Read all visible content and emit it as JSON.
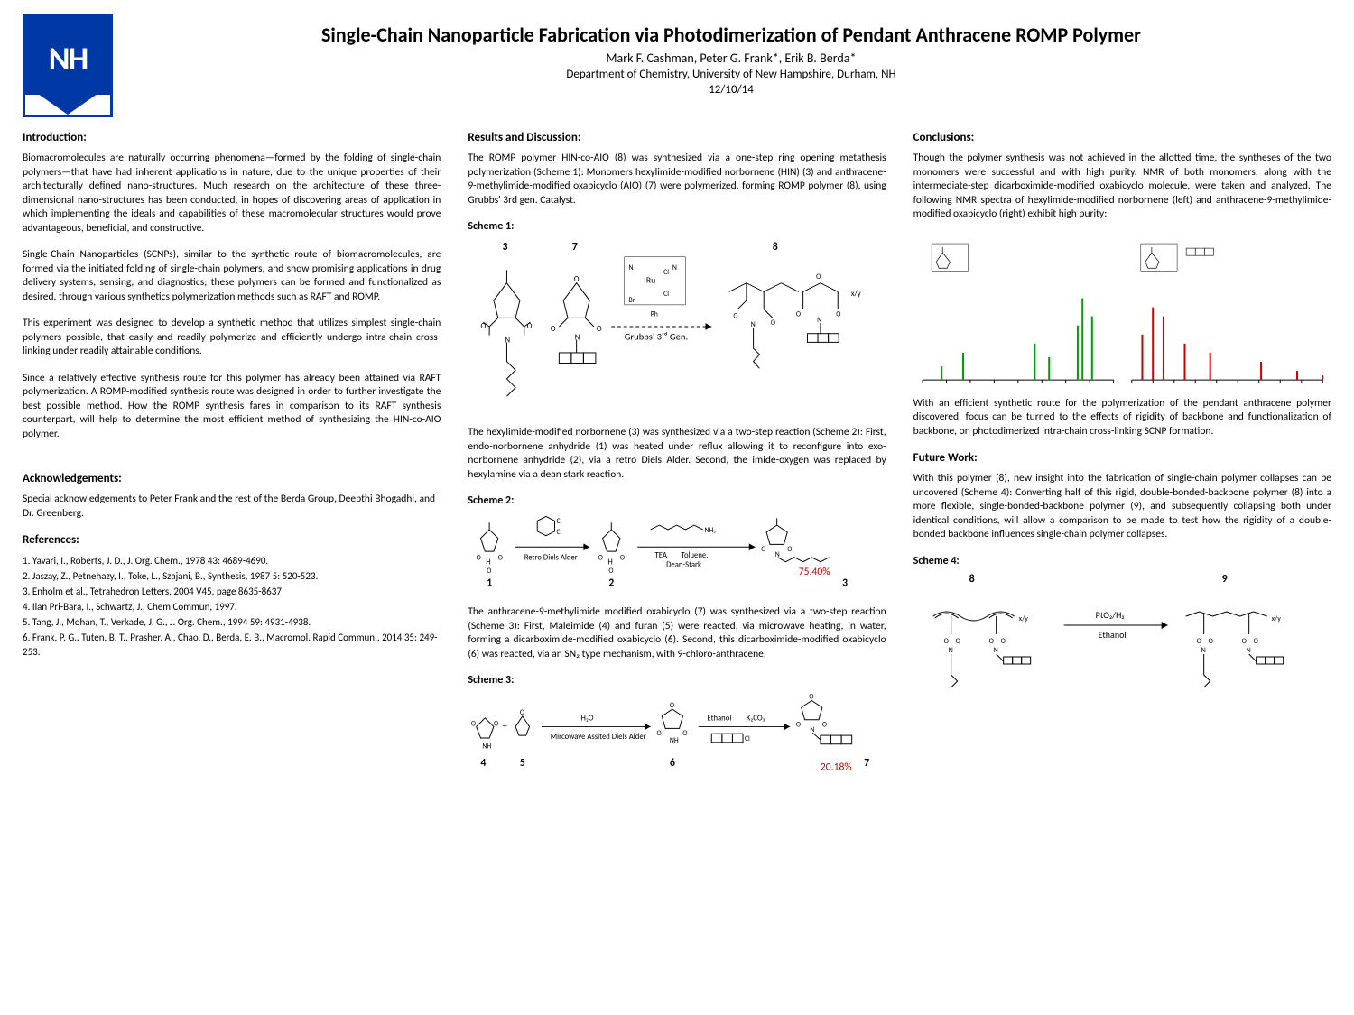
{
  "header": {
    "logo_text": "NH",
    "title": "Single-Chain Nanoparticle Fabrication via Photodimerization of Pendant Anthracene ROMP Polymer",
    "authors": "Mark F. Cashman, Peter G. Frank*, Erik B. Berda*",
    "department": "Department of Chemistry, University of New Hampshire, Durham, NH",
    "date": "12/10/14"
  },
  "intro": {
    "heading": "Introduction:",
    "p1": "Biomacromolecules are naturally occurring phenomena—formed by the folding of single-chain polymers—that have had inherent applications in nature, due to the unique properties of their architecturally defined nano-structures. Much research on the architecture of these three-dimensional nano-structures has been conducted, in hopes of discovering areas of application in which implementing the ideals and capabilities of these macromolecular structures would prove advantageous, beneficial, and constructive.",
    "p2": "Single-Chain Nanoparticles (SCNPs), similar to the synthetic route of biomacromolecules, are formed via the initiated folding of single-chain polymers, and show promising applications in drug delivery systems, sensing, and diagnostics; these polymers can be formed and functionalized as desired, through various synthetics polymerization methods such as RAFT and ROMP.",
    "p3": "This experiment was designed to develop a synthetic method that utilizes simplest single-chain polymers possible, that easily and readily polymerize and efficiently undergo intra-chain cross-linking under readily attainable conditions.",
    "p4": "Since a relatively effective synthesis route for this polymer has already been attained via RAFT polymerization. A ROMP-modified synthesis route was designed in order to further investigate the best possible method. How the ROMP synthesis fares in comparison to its RAFT synthesis counterpart, will help to determine the most efficient method of synthesizing the HIN-co-AIO polymer."
  },
  "ack": {
    "heading": "Acknowledgements:",
    "text": "Special acknowledgements to Peter Frank and the rest of the Berda Group, Deepthi Bhogadhi, and Dr. Greenberg."
  },
  "refs": {
    "heading": "References:",
    "items": [
      "1. Yavari, I., Roberts, J. D., J. Org. Chem., 1978 43: 4689-4690.",
      "2. Jaszay, Z., Petnehazy, I., Toke, L., Szajani, B., Synthesis, 1987 5: 520-523.",
      "3. Enholm et al., Tetrahedron Letters, 2004 V45, page 8635-8637",
      "4. Ilan Pri-Bara, I., Schwartz, J., Chem Commun, 1997.",
      "5. Tang, J., Mohan, T., Verkade, J. G., J. Org. Chem., 1994 59: 4931-4938.",
      "6. Frank, P. G., Tuten, B. T., Prasher, A., Chao, D., Berda, E. B., Macromol. Rapid Commun., 2014 35: 249-253."
    ]
  },
  "results": {
    "heading": "Results and Discussion:",
    "p1": "The ROMP polymer HIN-co-AIO (8) was synthesized via a one-step ring opening metathesis polymerization (Scheme 1): Monomers hexylimide-modified norbornene (HIN) (3) and anthracene-9-methylimide-modified oxabicyclo (AIO) (7) were polymerized, forming ROMP polymer (8), using Grubbs' 3rd gen. Catalyst.",
    "scheme1_label": "Scheme 1:",
    "scheme1_nums": [
      "3",
      "7",
      "8"
    ],
    "scheme1_catalyst": "Grubbs' 3rd Gen.",
    "p2": "The hexylimide-modified norbornene (3) was synthesized via a two-step reaction (Scheme 2): First, endo-norbornene anhydride (1) was heated under reflux allowing it to reconfigure into exo-norbornene anhydride (2), via a retro Diels Alder. Second, the imide-oxygen was replaced by hexylamine via a dean stark reaction.",
    "scheme2_label": "Scheme 2:",
    "scheme2_nums": [
      "1",
      "2",
      "3"
    ],
    "scheme2_yields": "75.40%",
    "scheme2_reag1": "Retro Diels Alder",
    "scheme2_reag2a": "TEA",
    "scheme2_reag2b": "Toluene,",
    "scheme2_reag2c": "Dean-Stark",
    "p3": "The anthracene-9-methylimide modified oxabicyclo (7) was synthesized via a two-step reaction (Scheme 3): First, Maleimide (4) and furan (5) were reacted, via microwave heating, in water, forming a dicarboximide-modified oxabicyclo (6). Second, this dicarboximide-modified oxabicyclo (6) was reacted, via an SN₂ type mechanism, with 9-chloro-anthracene.",
    "scheme3_label": "Scheme 3:",
    "scheme3_nums": [
      "4",
      "5",
      "6",
      "7"
    ],
    "scheme3_yields": "20.18%",
    "scheme3_reag1a": "H₂O",
    "scheme3_reag1b": "Mircowave Assited Diels Alder",
    "scheme3_reag2a": "Ethanol",
    "scheme3_reag2b": "K₂CO₃"
  },
  "conclusions": {
    "heading": "Conclusions:",
    "p1": "Though the polymer synthesis was not achieved in the allotted time, the syntheses of the two monomers were successful and with high purity. NMR of both monomers, along with the intermediate-step dicarboximide-modified oxabicyclo molecule, were taken and analyzed. The following NMR spectra of hexylimide-modified norbornene (left) and anthracene-9-methylimide-modified oxabicyclo (right) exhibit high purity:",
    "p2": "With an efficient synthetic route for the polymerization of the pendant anthracene polymer discovered, focus can be turned to the effects of rigidity of backbone and functionalization of backbone, on photodimerized intra-chain cross-linking SCNP formation."
  },
  "future": {
    "heading": "Future Work:",
    "p1": "With this polymer (8), new insight into the fabrication of single-chain polymer collapses can be uncovered (Scheme 4): Converting half of this rigid, double-bonded-backbone polymer (8) into a more flexible, single-bonded-backbone polymer (9), and subsequently collapsing both under identical conditions, will allow a comparison to be made to test how the rigidity of a double-bonded backbone influences single-chain polymer collapses.",
    "scheme4_label": "Scheme 4:",
    "scheme4_nums": [
      "8",
      "9"
    ],
    "scheme4_reag1": "PtO₂/H₂",
    "scheme4_reag2": "Ethanol"
  },
  "nmr": {
    "left_peaks_ppm": [
      7.2,
      6.3,
      3.3,
      2.7,
      1.5,
      1.3,
      0.9
    ],
    "left_peak_heights": [
      15,
      30,
      40,
      25,
      60,
      90,
      70
    ],
    "right_peaks_ppm": [
      8.5,
      8.0,
      7.5,
      6.5,
      5.3,
      2.9,
      1.2,
      0.0
    ],
    "right_peak_heights": [
      50,
      80,
      70,
      40,
      30,
      20,
      10,
      5
    ],
    "left_color": "#00a000",
    "right_color": "#cc0000",
    "axis_color": "#000000",
    "bg": "#ffffff"
  },
  "colors": {
    "logo_blue": "#0039a6",
    "yield_red": "#c00000",
    "text": "#000000"
  }
}
